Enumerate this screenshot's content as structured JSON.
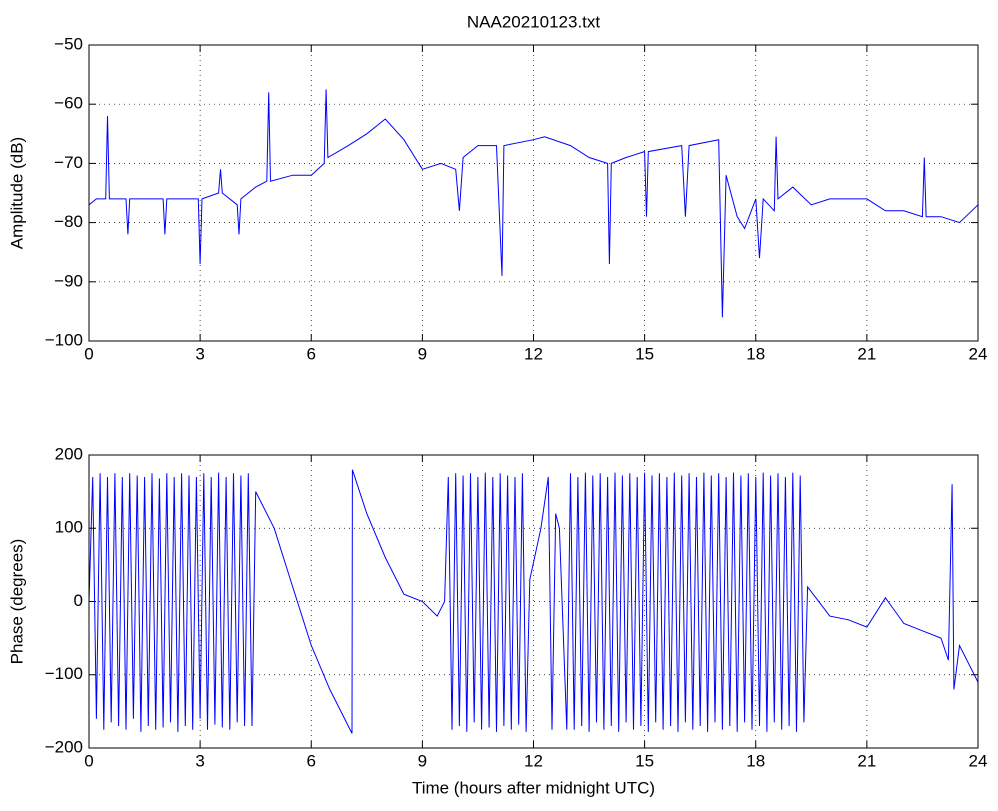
{
  "chart_data": [
    {
      "type": "line",
      "title": "NAA20210123.txt",
      "ylabel": "Amplitude (dB)",
      "color": "#0000ff",
      "grid": true,
      "xlim": [
        0,
        24
      ],
      "xticks": [
        0,
        3,
        6,
        9,
        12,
        15,
        18,
        21,
        24
      ],
      "ylim": [
        -100,
        -50
      ],
      "yticks": [
        {
          "value": -100,
          "label": "−100"
        },
        {
          "value": -90,
          "label": "−90"
        },
        {
          "value": -80,
          "label": "−80"
        },
        {
          "value": -70,
          "label": "−70"
        },
        {
          "value": -60,
          "label": "−60"
        },
        {
          "value": -50,
          "label": "−50"
        }
      ],
      "x": [
        0,
        0.2,
        0.45,
        0.5,
        0.55,
        1.0,
        1.05,
        1.1,
        2.0,
        2.05,
        2.1,
        2.95,
        3.0,
        3.05,
        3.5,
        3.55,
        3.6,
        4.0,
        4.05,
        4.1,
        4.5,
        4.8,
        4.85,
        4.9,
        5.5,
        6.0,
        6.35,
        6.4,
        6.45,
        7.0,
        7.5,
        8.0,
        8.5,
        9.0,
        9.5,
        9.9,
        10.0,
        10.1,
        10.5,
        11.0,
        11.15,
        11.2,
        12.0,
        12.3,
        13.0,
        13.5,
        14.0,
        14.05,
        14.1,
        14.5,
        15.0,
        15.05,
        15.1,
        16.0,
        16.1,
        16.2,
        17.0,
        17.1,
        17.2,
        17.5,
        17.7,
        18.0,
        18.1,
        18.2,
        18.5,
        18.55,
        18.6,
        19.0,
        19.5,
        20.0,
        21.0,
        21.5,
        22.0,
        22.5,
        22.55,
        22.6,
        23.0,
        23.5,
        24.0
      ],
      "values": [
        -77,
        -76,
        -76,
        -62,
        -76,
        -76,
        -82,
        -76,
        -76,
        -82,
        -76,
        -76,
        -87,
        -76,
        -75,
        -71,
        -75,
        -77,
        -82,
        -76,
        -74,
        -73,
        -58,
        -73,
        -72,
        -72,
        -70,
        -57.5,
        -69,
        -67,
        -65,
        -62.5,
        -66,
        -71,
        -70,
        -71,
        -78,
        -69,
        -67,
        -67,
        -89,
        -67,
        -66,
        -65.5,
        -67,
        -69,
        -70,
        -87,
        -70,
        -69,
        -68,
        -79,
        -68,
        -67,
        -79,
        -67,
        -66,
        -96,
        -72,
        -79,
        -81,
        -76,
        -86,
        -76,
        -78,
        -65.5,
        -76,
        -74,
        -77,
        -76,
        -76,
        -78,
        -78,
        -79,
        -69,
        -79,
        -79,
        -80,
        -77
      ]
    },
    {
      "type": "line",
      "ylabel": "Phase (degrees)",
      "xlabel": "Time (hours after midnight UTC)",
      "color": "#0000ff",
      "grid": true,
      "xlim": [
        0,
        24
      ],
      "xticks": [
        0,
        3,
        6,
        9,
        12,
        15,
        18,
        21,
        24
      ],
      "ylim": [
        -200,
        200
      ],
      "yticks": [
        {
          "value": -200,
          "label": "−200"
        },
        {
          "value": -100,
          "label": "−100"
        },
        0,
        100,
        200
      ],
      "x": [
        0,
        0.1,
        0.2,
        0.3,
        0.4,
        0.5,
        0.6,
        0.7,
        0.8,
        0.9,
        1.0,
        1.1,
        1.2,
        1.3,
        1.4,
        1.5,
        1.6,
        1.7,
        1.8,
        1.9,
        2.0,
        2.1,
        2.2,
        2.3,
        2.4,
        2.5,
        2.6,
        2.7,
        2.8,
        2.9,
        3.0,
        3.1,
        3.2,
        3.3,
        3.4,
        3.5,
        3.6,
        3.7,
        3.8,
        3.9,
        4.0,
        4.1,
        4.2,
        4.3,
        4.4,
        4.5,
        5.0,
        5.5,
        6.0,
        6.5,
        7.1,
        7.11,
        7.5,
        8.0,
        8.5,
        9.0,
        9.4,
        9.6,
        9.7,
        9.8,
        9.9,
        10.0,
        10.1,
        10.2,
        10.3,
        10.4,
        10.5,
        10.6,
        10.7,
        10.8,
        10.9,
        11.0,
        11.1,
        11.2,
        11.3,
        11.4,
        11.5,
        11.6,
        11.7,
        11.8,
        11.9,
        12.2,
        12.4,
        12.5,
        12.6,
        12.7,
        12.9,
        13.0,
        13.1,
        13.2,
        13.3,
        13.4,
        13.5,
        13.6,
        13.7,
        13.8,
        13.9,
        14.0,
        14.1,
        14.2,
        14.3,
        14.4,
        14.5,
        14.6,
        14.7,
        14.8,
        14.9,
        15.0,
        15.1,
        15.2,
        15.3,
        15.4,
        15.5,
        15.6,
        15.7,
        15.8,
        15.9,
        16.0,
        16.1,
        16.2,
        16.3,
        16.4,
        16.5,
        16.6,
        16.7,
        16.8,
        16.9,
        17.0,
        17.1,
        17.2,
        17.3,
        17.4,
        17.5,
        17.6,
        17.7,
        17.8,
        17.9,
        18.0,
        18.1,
        18.2,
        18.3,
        18.4,
        18.5,
        18.6,
        18.7,
        18.8,
        18.9,
        19.0,
        19.1,
        19.2,
        19.3,
        19.4,
        20.0,
        20.5,
        21.0,
        21.5,
        22.0,
        22.5,
        23.0,
        23.2,
        23.3,
        23.35,
        23.5,
        24.0
      ],
      "values": [
        0,
        170,
        -160,
        175,
        -175,
        170,
        -165,
        175,
        -170,
        170,
        -175,
        175,
        -160,
        172,
        -178,
        170,
        -170,
        175,
        -175,
        168,
        -172,
        175,
        -165,
        170,
        -178,
        175,
        -170,
        172,
        -175,
        170,
        -160,
        175,
        -175,
        170,
        -168,
        176,
        -172,
        170,
        -175,
        175,
        -165,
        172,
        -170,
        175,
        -170,
        150,
        100,
        20,
        -60,
        -120,
        -180,
        180,
        120,
        60,
        10,
        0,
        -20,
        0,
        170,
        -175,
        175,
        -170,
        172,
        -178,
        175,
        -165,
        170,
        -175,
        176,
        -172,
        170,
        -178,
        175,
        -170,
        172,
        -175,
        170,
        -168,
        175,
        -178,
        30,
        100,
        170,
        -175,
        120,
        100,
        -175,
        175,
        -175,
        170,
        -170,
        176,
        -178,
        172,
        -165,
        175,
        -175,
        170,
        -170,
        176,
        -178,
        172,
        -165,
        175,
        -175,
        170,
        -170,
        176,
        -178,
        172,
        -165,
        175,
        -175,
        170,
        -170,
        176,
        -178,
        172,
        -165,
        175,
        -175,
        170,
        -170,
        176,
        -178,
        172,
        -165,
        175,
        -175,
        170,
        -170,
        176,
        -178,
        172,
        -165,
        175,
        -175,
        170,
        -170,
        176,
        -178,
        172,
        -165,
        175,
        -175,
        170,
        -170,
        176,
        -178,
        172,
        -165,
        20,
        -20,
        -25,
        -35,
        5,
        -30,
        -40,
        -50,
        -80,
        160,
        -120,
        -60,
        -110
      ]
    }
  ]
}
